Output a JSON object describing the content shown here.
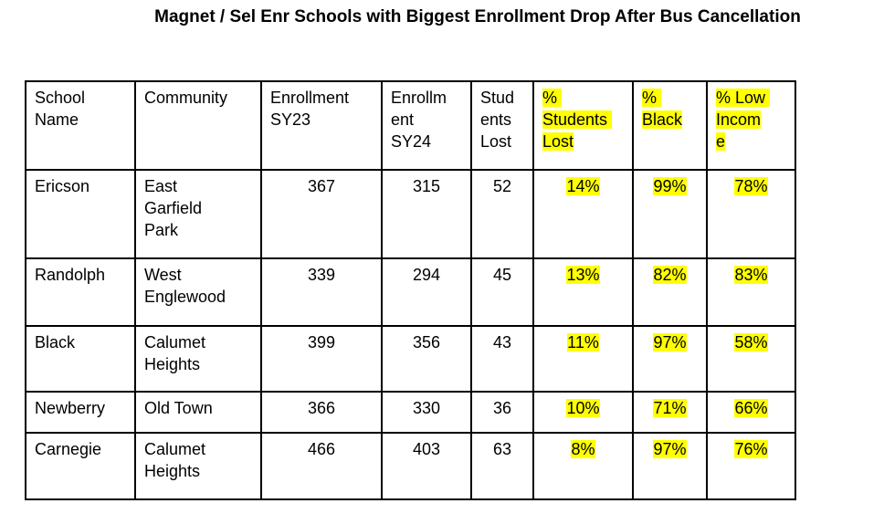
{
  "title": "Magnet / Sel Enr Schools with Biggest Enrollment Drop After Bus Cancellation",
  "highlight_color": "#ffff00",
  "table": {
    "columns": [
      {
        "key": "school_name",
        "label": "School\nName",
        "align": "left",
        "highlighted": false
      },
      {
        "key": "community",
        "label": "Community",
        "align": "left",
        "highlighted": false
      },
      {
        "key": "enrollment_sy23",
        "label": "Enrollment\nSY23",
        "align": "center",
        "highlighted": false
      },
      {
        "key": "enrollment_sy24",
        "label": "Enrollm\nent\nSY24",
        "align": "center",
        "highlighted": false
      },
      {
        "key": "students_lost",
        "label": "Stud\nents\nLost",
        "align": "center",
        "highlighted": false
      },
      {
        "key": "pct_students_lost",
        "label": "% \nStudents \nLost",
        "align": "center",
        "highlighted": true
      },
      {
        "key": "pct_black",
        "label": "% \nBlack",
        "align": "center",
        "highlighted": true
      },
      {
        "key": "pct_low_income",
        "label": "% Low \nIncom\ne",
        "align": "center",
        "highlighted": true
      }
    ],
    "rows": [
      {
        "cells": [
          "Ericson",
          "East\nGarfield\nPark",
          "367",
          "315",
          "52",
          "14%",
          "99%",
          "78%"
        ]
      },
      {
        "cells": [
          "Randolph",
          "West\nEnglewood",
          "339",
          "294",
          "45",
          "13%",
          "82%",
          "83%"
        ]
      },
      {
        "cells": [
          "Black",
          "Calumet\nHeights",
          "399",
          "356",
          "43",
          "11%",
          "97%",
          "58%"
        ]
      },
      {
        "cells": [
          "Newberry",
          "Old Town",
          "366",
          "330",
          "36",
          "10%",
          "71%",
          "66%"
        ]
      },
      {
        "cells": [
          "Carnegie",
          "Calumet\nHeights",
          "466",
          "403",
          "63",
          "8%",
          "97%",
          "76%"
        ]
      }
    ]
  }
}
